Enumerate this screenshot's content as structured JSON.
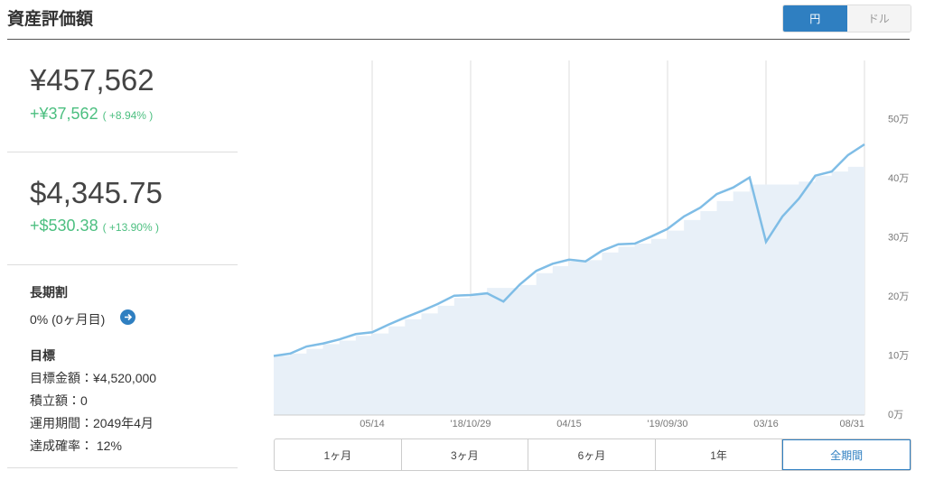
{
  "header": {
    "title": "資産評価額",
    "currency_buttons": [
      "円",
      "ドル"
    ]
  },
  "summary": {
    "jpy_value": "¥457,562",
    "jpy_change": "+¥37,562",
    "jpy_change_pct": "( +8.94% )",
    "usd_value": "$4,345.75",
    "usd_change": "+$530.38",
    "usd_change_pct": "( +13.90% )"
  },
  "long_term": {
    "title": "長期割",
    "value": "0% (0ヶ月目)"
  },
  "goal": {
    "title": "目標",
    "items": [
      "目標金額：¥4,520,000",
      "積立額：0",
      "運用期間：2049年4月",
      "達成確率： 12%"
    ]
  },
  "periods": [
    "1ヶ月",
    "3ヶ月",
    "6ヶ月",
    "1年",
    "全期間"
  ],
  "chart_data": {
    "type": "line",
    "categories": [
      null,
      null,
      null,
      null,
      null,
      null,
      "05/14",
      null,
      null,
      null,
      null,
      null,
      "'18/10/29",
      null,
      null,
      null,
      null,
      null,
      "04/15",
      null,
      null,
      null,
      null,
      null,
      "'19/09/30",
      null,
      null,
      null,
      null,
      null,
      "03/16",
      null,
      null,
      null,
      null,
      null,
      "08/31"
    ],
    "series": [
      {
        "type": "area",
        "color": "#e8f0f8",
        "values": [
          100000,
          104000,
          112000,
          120000,
          126000,
          134000,
          138000,
          150000,
          162000,
          172000,
          185000,
          198000,
          205000,
          215000,
          215000,
          220000,
          240000,
          252000,
          260000,
          262000,
          275000,
          285000,
          290000,
          298000,
          312000,
          330000,
          345000,
          362000,
          378000,
          390000,
          390000,
          390000,
          395000,
          405000,
          412000,
          420000,
          420000
        ]
      },
      {
        "type": "line",
        "color": "#7fbde6",
        "values": [
          100000,
          104000,
          116000,
          121000,
          128000,
          137000,
          140000,
          153000,
          165000,
          176000,
          188000,
          202000,
          203000,
          206000,
          192000,
          221000,
          244000,
          256000,
          263000,
          260000,
          278000,
          289000,
          290000,
          302000,
          315000,
          336000,
          351000,
          374000,
          385000,
          402000,
          293000,
          336000,
          366000,
          405000,
          412000,
          440000,
          458000
        ]
      }
    ],
    "ylim": [
      0,
      600000
    ],
    "yticks": [
      {
        "value": 0,
        "label": "0万"
      },
      {
        "value": 100000,
        "label": "10万"
      },
      {
        "value": 200000,
        "label": "20万"
      },
      {
        "value": 300000,
        "label": "30万"
      },
      {
        "value": 400000,
        "label": "40万"
      },
      {
        "value": 500000,
        "label": "50万"
      }
    ],
    "grid": true
  }
}
